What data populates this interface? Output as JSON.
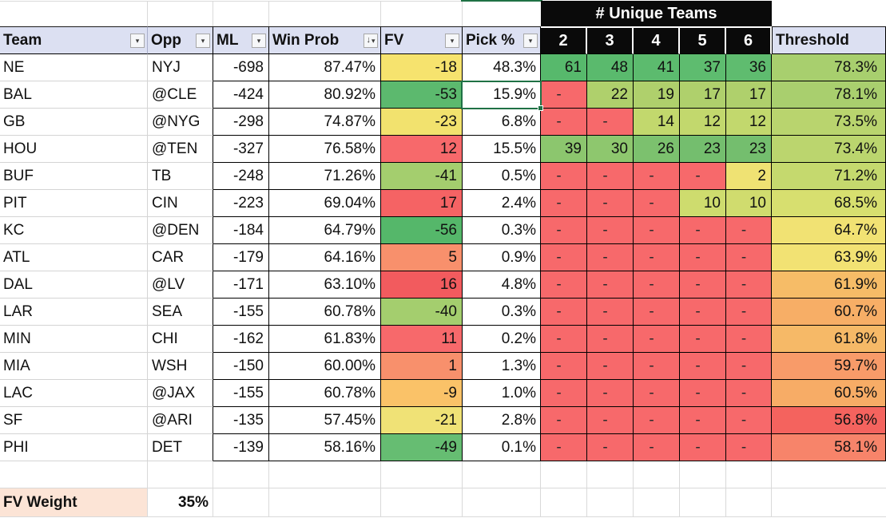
{
  "icons": {
    "filter_arrow": "▾",
    "sort_arrow": "↓"
  },
  "colors": {
    "header_bg": "#DCE0F2",
    "black_header_bg": "#0A0A0A",
    "selection_green": "#1F7145",
    "footer_label_bg": "#FCE4D6",
    "scale_red": "#F7696B",
    "scale_yellow": "#F2E26E",
    "scale_green": "#5CB96E"
  },
  "unique_header": "# Unique Teams",
  "unique_cols": [
    "2",
    "3",
    "4",
    "5",
    "6"
  ],
  "columns": [
    {
      "label": "Team",
      "filter": true
    },
    {
      "label": "Opp",
      "filter": true
    },
    {
      "label": "ML",
      "filter": true
    },
    {
      "label": "Win Prob",
      "filter": true,
      "sorted": true
    },
    {
      "label": "FV",
      "filter": true
    },
    {
      "label": "Pick %",
      "filter": true
    },
    {
      "label": "Threshold",
      "filter": false
    }
  ],
  "rows": [
    {
      "team": "NE",
      "opp": "NYJ",
      "ml": "-698",
      "win_prob": "87.47%",
      "fv": "-18",
      "fv_color": "#F6E36E",
      "pick": "48.3%",
      "unique": [
        "61",
        "48",
        "41",
        "37",
        "36"
      ],
      "unique_colors": [
        "#57B96C",
        "#5ABA6D",
        "#5CBB6E",
        "#5EBC6F",
        "#5FBC6F"
      ],
      "threshold": "78.3%",
      "threshold_color": "#A8CF6E"
    },
    {
      "team": "BAL",
      "opp": "@CLE",
      "ml": "-424",
      "win_prob": "80.92%",
      "fv": "-53",
      "fv_color": "#5CB96E",
      "pick": "15.9%",
      "unique": [
        "-",
        "22",
        "19",
        "17",
        "17"
      ],
      "unique_colors": [
        "#F7696B",
        "#AFD06C",
        "#AFD06C",
        "#AFD06C",
        "#AFD06C"
      ],
      "threshold": "78.1%",
      "threshold_color": "#A9CF6E"
    },
    {
      "team": "GB",
      "opp": "@NYG",
      "ml": "-298",
      "win_prob": "74.87%",
      "fv": "-23",
      "fv_color": "#F2E26E",
      "pick": "6.8%",
      "unique": [
        "-",
        "-",
        "14",
        "12",
        "12"
      ],
      "unique_colors": [
        "#F7696B",
        "#F7696B",
        "#C2D86D",
        "#C2D86D",
        "#C2D86D"
      ],
      "threshold": "73.5%",
      "threshold_color": "#B9D46E"
    },
    {
      "team": "HOU",
      "opp": "@TEN",
      "ml": "-327",
      "win_prob": "76.58%",
      "fv": "12",
      "fv_color": "#F7696B",
      "pick": "15.5%",
      "unique": [
        "39",
        "30",
        "26",
        "23",
        "23"
      ],
      "unique_colors": [
        "#8CC66E",
        "#8EC76E",
        "#7CC16E",
        "#74BE6E",
        "#74BE6E"
      ],
      "threshold": "73.4%",
      "threshold_color": "#BBD56E"
    },
    {
      "team": "BUF",
      "opp": "TB",
      "ml": "-248",
      "win_prob": "71.26%",
      "fv": "-41",
      "fv_color": "#A4CE6E",
      "pick": "0.5%",
      "unique": [
        "-",
        "-",
        "-",
        "-",
        "2"
      ],
      "unique_colors": [
        "#F7696B",
        "#F7696B",
        "#F7696B",
        "#F7696B",
        "#EFE273"
      ],
      "threshold": "71.2%",
      "threshold_color": "#C5D96E"
    },
    {
      "team": "PIT",
      "opp": "CIN",
      "ml": "-223",
      "win_prob": "69.04%",
      "fv": "17",
      "fv_color": "#F56364",
      "pick": "2.4%",
      "unique": [
        "-",
        "-",
        "-",
        "10",
        "10"
      ],
      "unique_colors": [
        "#F7696B",
        "#F7696B",
        "#F7696B",
        "#CEDC6E",
        "#D0DC6E"
      ],
      "threshold": "68.5%",
      "threshold_color": "#D7DF6F"
    },
    {
      "team": "KC",
      "opp": "@DEN",
      "ml": "-184",
      "win_prob": "64.79%",
      "fv": "-56",
      "fv_color": "#55B76A",
      "pick": "0.3%",
      "unique": [
        "-",
        "-",
        "-",
        "-",
        "-"
      ],
      "unique_colors": [
        "#F7696B",
        "#F7696B",
        "#F7696B",
        "#F7696B",
        "#F7696B"
      ],
      "threshold": "64.7%",
      "threshold_color": "#F1E273"
    },
    {
      "team": "ATL",
      "opp": "CAR",
      "ml": "-179",
      "win_prob": "64.16%",
      "fv": "5",
      "fv_color": "#F8906C",
      "pick": "0.9%",
      "unique": [
        "-",
        "-",
        "-",
        "-",
        "-"
      ],
      "unique_colors": [
        "#F7696B",
        "#F7696B",
        "#F7696B",
        "#F7696B",
        "#F7696B"
      ],
      "threshold": "63.9%",
      "threshold_color": "#F2E273"
    },
    {
      "team": "DAL",
      "opp": "@LV",
      "ml": "-171",
      "win_prob": "63.10%",
      "fv": "16",
      "fv_color": "#F25B5E",
      "pick": "4.8%",
      "unique": [
        "-",
        "-",
        "-",
        "-",
        "-"
      ],
      "unique_colors": [
        "#F7696B",
        "#F7696B",
        "#F7696B",
        "#F7696B",
        "#F7696B"
      ],
      "threshold": "61.9%",
      "threshold_color": "#F6BC67"
    },
    {
      "team": "LAR",
      "opp": "SEA",
      "ml": "-155",
      "win_prob": "60.78%",
      "fv": "-40",
      "fv_color": "#A4CE6E",
      "pick": "0.3%",
      "unique": [
        "-",
        "-",
        "-",
        "-",
        "-"
      ],
      "unique_colors": [
        "#F7696B",
        "#F7696B",
        "#F7696B",
        "#F7696B",
        "#F7696B"
      ],
      "threshold": "60.7%",
      "threshold_color": "#F7AE66"
    },
    {
      "team": "MIN",
      "opp": "CHI",
      "ml": "-162",
      "win_prob": "61.83%",
      "fv": "11",
      "fv_color": "#F7696B",
      "pick": "0.2%",
      "unique": [
        "-",
        "-",
        "-",
        "-",
        "-"
      ],
      "unique_colors": [
        "#F7696B",
        "#F7696B",
        "#F7696B",
        "#F7696B",
        "#F7696B"
      ],
      "threshold": "61.8%",
      "threshold_color": "#F6B967"
    },
    {
      "team": "MIA",
      "opp": "WSH",
      "ml": "-150",
      "win_prob": "60.00%",
      "fv": "1",
      "fv_color": "#F8906C",
      "pick": "1.3%",
      "unique": [
        "-",
        "-",
        "-",
        "-",
        "-"
      ],
      "unique_colors": [
        "#F7696B",
        "#F7696B",
        "#F7696B",
        "#F7696B",
        "#F7696B"
      ],
      "threshold": "59.7%",
      "threshold_color": "#F89B69"
    },
    {
      "team": "LAC",
      "opp": "@JAX",
      "ml": "-155",
      "win_prob": "60.78%",
      "fv": "-9",
      "fv_color": "#FAC268",
      "pick": "1.0%",
      "unique": [
        "-",
        "-",
        "-",
        "-",
        "-"
      ],
      "unique_colors": [
        "#F7696B",
        "#F7696B",
        "#F7696B",
        "#F7696B",
        "#F7696B"
      ],
      "threshold": "60.5%",
      "threshold_color": "#F7AC66"
    },
    {
      "team": "SF",
      "opp": "@ARI",
      "ml": "-135",
      "win_prob": "57.45%",
      "fv": "-21",
      "fv_color": "#F0E276",
      "pick": "2.8%",
      "unique": [
        "-",
        "-",
        "-",
        "-",
        "-"
      ],
      "unique_colors": [
        "#F7696B",
        "#F7696B",
        "#F7696B",
        "#F7696B",
        "#F7696B"
      ],
      "threshold": "56.8%",
      "threshold_color": "#F4635E"
    },
    {
      "team": "PHI",
      "opp": "DET",
      "ml": "-139",
      "win_prob": "58.16%",
      "fv": "-49",
      "fv_color": "#66BD72",
      "pick": "0.1%",
      "unique": [
        "-",
        "-",
        "-",
        "-",
        "-"
      ],
      "unique_colors": [
        "#F7696B",
        "#F7696B",
        "#F7696B",
        "#F7696B",
        "#F7696B"
      ],
      "threshold": "58.1%",
      "threshold_color": "#F7846A"
    }
  ],
  "footer": {
    "label": "FV Weight",
    "value": "35%"
  }
}
